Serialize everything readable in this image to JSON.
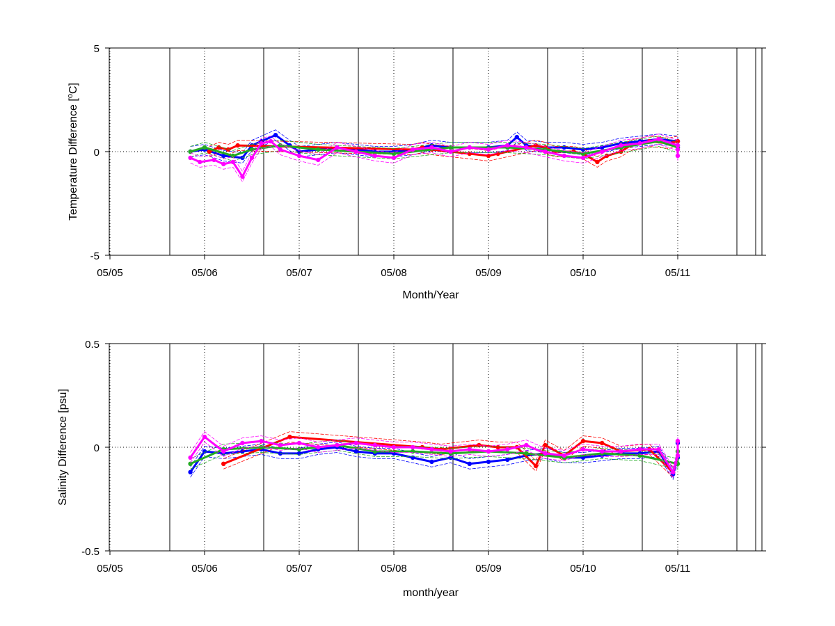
{
  "colors": {
    "red": "#ff0000",
    "green": "#22aa22",
    "blue": "#0000ff",
    "magenta": "#ff00ff",
    "axis": "#000000"
  },
  "chart_data": [
    {
      "type": "scatter",
      "xlabel": "Month/Year",
      "ylabel_main": "Temperature Difference [",
      "ylabel_sup": "o",
      "ylabel_tail": "C]",
      "x_ticks": [
        "05/05",
        "05/06",
        "05/07",
        "05/08",
        "05/09",
        "05/10",
        "05/11"
      ],
      "y_ticks": [
        "5",
        "0",
        "-5"
      ],
      "ylim": [
        -5,
        5
      ],
      "grid": "dotted at month ticks and y=0",
      "series": [
        {
          "color_key": "blue",
          "x": [
            5.85,
            6.0,
            6.2,
            6.4,
            6.5,
            6.6,
            6.75,
            6.9,
            7.0,
            7.2,
            7.4,
            7.6,
            7.8,
            8.0,
            8.2,
            8.4,
            8.6,
            8.8,
            9.0,
            9.2,
            9.3,
            9.4,
            9.6,
            9.8,
            10.0,
            10.2,
            10.4,
            10.6,
            10.8,
            11.0,
            11.2,
            11.3
          ],
          "y": [
            0.0,
            0.1,
            -0.2,
            -0.3,
            0.3,
            0.5,
            0.8,
            0.3,
            0.0,
            0.1,
            0.2,
            0.1,
            0.0,
            0.0,
            0.1,
            0.3,
            0.2,
            0.2,
            0.2,
            0.3,
            0.7,
            0.3,
            0.2,
            0.2,
            0.1,
            0.2,
            0.4,
            0.5,
            0.6,
            0.5,
            0.3,
            0.2
          ]
        },
        {
          "color_key": "red",
          "x": [
            6.05,
            6.15,
            6.25,
            6.35,
            8.2,
            8.3,
            8.4,
            8.8,
            9.0,
            9.1,
            9.5,
            9.6,
            9.7,
            9.9,
            10.0,
            10.15,
            10.25,
            10.4,
            10.5,
            10.7,
            10.9,
            11.1
          ],
          "y": [
            0.0,
            0.2,
            0.1,
            0.3,
            0.1,
            0.2,
            0.1,
            -0.1,
            -0.2,
            -0.1,
            0.3,
            0.2,
            0.0,
            0.0,
            -0.1,
            -0.5,
            -0.2,
            0.0,
            0.3,
            0.5,
            0.4,
            0.5
          ]
        },
        {
          "color_key": "green",
          "x": [
            5.85,
            6.0,
            6.3,
            6.5,
            6.8,
            7.2,
            7.6,
            8.0,
            8.6,
            9.2,
            9.6,
            10.0,
            10.4,
            10.8,
            11.2
          ],
          "y": [
            0.0,
            0.2,
            -0.2,
            0.1,
            0.3,
            0.1,
            0.0,
            -0.1,
            0.2,
            0.2,
            0.1,
            -0.1,
            0.2,
            0.5,
            0.2
          ]
        },
        {
          "color_key": "magenta",
          "x": [
            5.85,
            5.95,
            6.1,
            6.2,
            6.3,
            6.4,
            6.5,
            6.6,
            6.7,
            6.8,
            7.0,
            7.2,
            7.4,
            7.6,
            7.8,
            8.0,
            8.2,
            8.4,
            8.6,
            8.8,
            9.0,
            9.2,
            9.4,
            9.6,
            9.8,
            10.0,
            10.2,
            10.4,
            10.6,
            10.8,
            11.0,
            11.2,
            11.3
          ],
          "y": [
            -0.3,
            -0.5,
            -0.4,
            -0.6,
            -0.5,
            -1.2,
            -0.3,
            0.4,
            0.5,
            0.1,
            -0.2,
            -0.4,
            0.2,
            0.0,
            -0.2,
            -0.3,
            0.1,
            0.2,
            0.0,
            0.2,
            0.1,
            0.3,
            0.2,
            0.0,
            -0.2,
            -0.3,
            0.0,
            0.3,
            0.4,
            0.6,
            0.3,
            0.1,
            -0.2
          ]
        }
      ]
    },
    {
      "type": "scatter",
      "xlabel": "month/year",
      "ylabel_main": "Salinity Difference [psu]",
      "x_ticks": [
        "05/05",
        "05/06",
        "05/07",
        "05/08",
        "05/09",
        "05/10",
        "05/11"
      ],
      "y_ticks": [
        "0.5",
        "0",
        "-0.5"
      ],
      "ylim": [
        -0.5,
        0.5
      ],
      "grid": "dotted at month ticks and y=0",
      "series": [
        {
          "color_key": "blue",
          "x": [
            5.85,
            6.0,
            6.2,
            6.4,
            6.6,
            6.8,
            7.0,
            7.2,
            7.4,
            7.6,
            7.8,
            8.0,
            8.2,
            8.4,
            8.6,
            8.8,
            9.0,
            9.2,
            9.4,
            9.6,
            9.8,
            10.0,
            10.2,
            10.4,
            10.6,
            10.8,
            10.95,
            11.1,
            11.3
          ],
          "y": [
            -0.12,
            -0.02,
            -0.03,
            -0.02,
            -0.01,
            -0.03,
            -0.03,
            -0.01,
            0.0,
            -0.02,
            -0.03,
            -0.03,
            -0.05,
            -0.07,
            -0.05,
            -0.08,
            -0.07,
            -0.06,
            -0.04,
            -0.03,
            -0.05,
            -0.05,
            -0.04,
            -0.03,
            -0.03,
            -0.02,
            -0.13,
            -0.05,
            0.02
          ]
        },
        {
          "color_key": "red",
          "x": [
            6.2,
            6.9,
            8.3,
            8.5,
            8.9,
            9.1,
            9.3,
            9.5,
            9.6,
            9.8,
            10.0,
            10.2,
            10.4,
            10.7,
            10.95
          ],
          "y": [
            -0.08,
            0.05,
            0.0,
            -0.01,
            0.01,
            0.0,
            0.0,
            -0.09,
            0.01,
            -0.04,
            0.03,
            0.02,
            -0.02,
            -0.01,
            -0.12
          ]
        },
        {
          "color_key": "green",
          "x": [
            5.85,
            6.2,
            6.6,
            7.0,
            7.4,
            7.8,
            8.2,
            8.6,
            9.0,
            9.4,
            9.8,
            10.2,
            10.6,
            11.0,
            11.3
          ],
          "y": [
            -0.08,
            -0.01,
            0.0,
            -0.01,
            0.01,
            -0.02,
            -0.02,
            -0.03,
            -0.02,
            -0.03,
            -0.05,
            -0.03,
            -0.04,
            -0.08,
            -0.02
          ]
        },
        {
          "color_key": "magenta",
          "x": [
            5.85,
            6.0,
            6.2,
            6.4,
            6.6,
            6.8,
            7.0,
            7.2,
            7.4,
            7.6,
            7.8,
            8.0,
            8.2,
            8.4,
            8.6,
            8.8,
            9.0,
            9.2,
            9.4,
            9.6,
            9.8,
            10.0,
            10.2,
            10.4,
            10.6,
            10.8,
            10.95,
            11.1,
            11.3
          ],
          "y": [
            -0.05,
            0.05,
            -0.02,
            0.02,
            0.03,
            0.01,
            0.02,
            0.0,
            0.01,
            0.02,
            0.01,
            0.0,
            0.0,
            -0.01,
            -0.02,
            -0.01,
            -0.02,
            -0.01,
            0.01,
            -0.03,
            -0.04,
            -0.01,
            -0.02,
            -0.02,
            -0.01,
            -0.01,
            -0.12,
            -0.04,
            0.03
          ]
        }
      ]
    }
  ]
}
